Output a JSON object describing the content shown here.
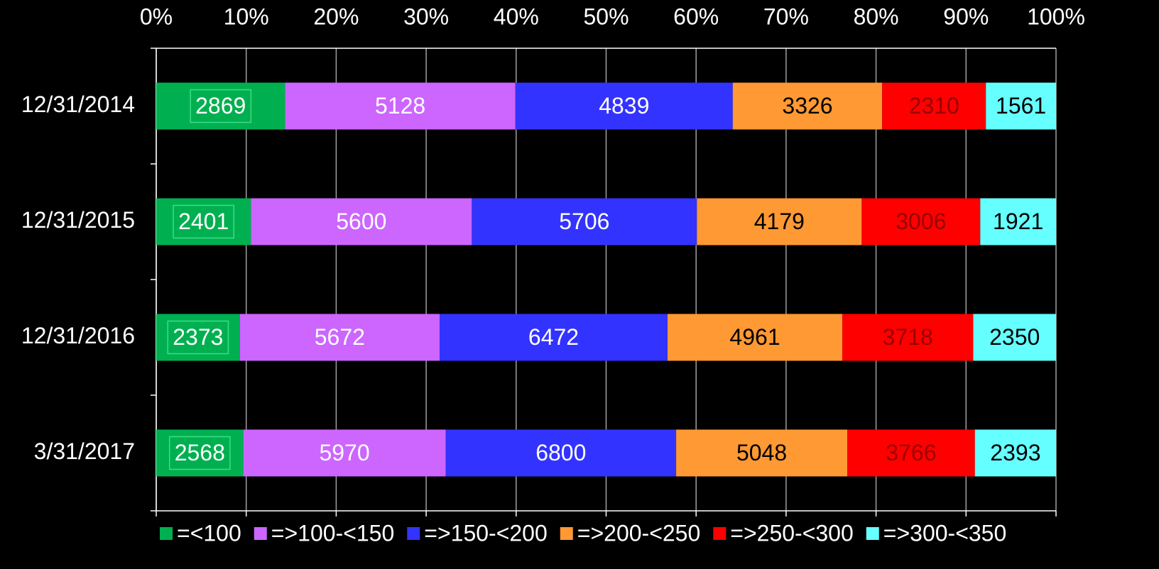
{
  "chart_data": {
    "type": "bar",
    "orientation": "horizontal",
    "stacking": "percent",
    "categories": [
      "12/31/2014",
      "12/31/2015",
      "12/31/2016",
      "3/31/2017"
    ],
    "series": [
      {
        "name": "=<100",
        "color": "#00b050",
        "label_color": "#ffffff",
        "values": [
          2869,
          2401,
          2373,
          2568
        ]
      },
      {
        "name": "=>100-<150",
        "color": "#cc66ff",
        "label_color": "#ffffff",
        "values": [
          5128,
          5600,
          5672,
          5970
        ]
      },
      {
        "name": "=>150-<200",
        "color": "#3333ff",
        "label_color": "#ffffff",
        "values": [
          4839,
          5706,
          6472,
          6800
        ]
      },
      {
        "name": "=>200-<250",
        "color": "#ff9933",
        "label_color": "#000000",
        "values": [
          3326,
          4179,
          4961,
          5048
        ]
      },
      {
        "name": "=>250-<300",
        "color": "#ff0000",
        "label_color": "#990000",
        "values": [
          2310,
          3006,
          3718,
          3766
        ]
      },
      {
        "name": "=>300-<350",
        "color": "#66ffff",
        "label_color": "#000000",
        "values": [
          1561,
          1921,
          2350,
          2393
        ]
      }
    ],
    "xlim": [
      0,
      100
    ],
    "xticks": [
      {
        "value": 0,
        "label": "0%"
      },
      {
        "value": 10,
        "label": "10%"
      },
      {
        "value": 20,
        "label": "20%"
      },
      {
        "value": 30,
        "label": "30%"
      },
      {
        "value": 40,
        "label": "40%"
      },
      {
        "value": 50,
        "label": "50%"
      },
      {
        "value": 60,
        "label": "60%"
      },
      {
        "value": 70,
        "label": "70%"
      },
      {
        "value": 80,
        "label": "80%"
      },
      {
        "value": 90,
        "label": "90%"
      },
      {
        "value": 100,
        "label": "100%"
      }
    ],
    "grid": true,
    "legend": "bottom"
  }
}
